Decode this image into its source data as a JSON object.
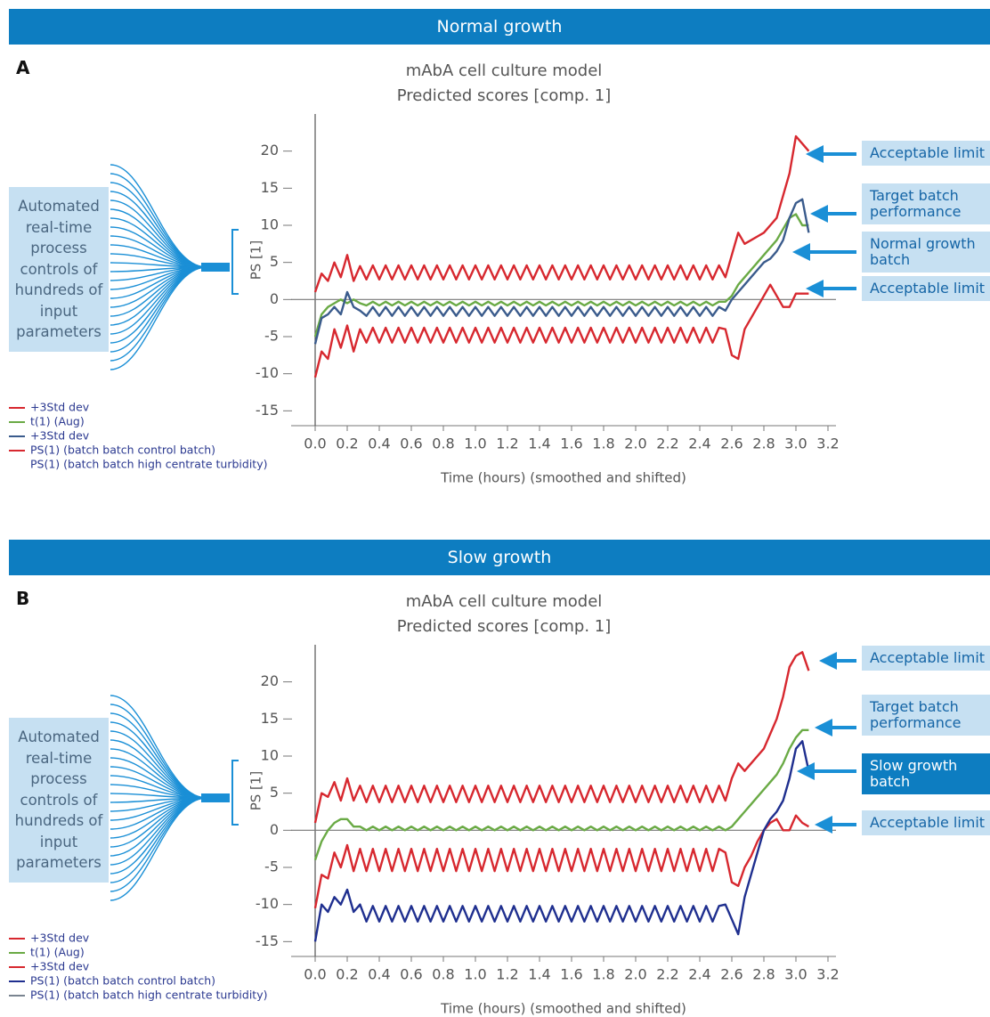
{
  "panels": [
    {
      "header": "Normal growth",
      "letter": "A",
      "process_label": "Automated real-time process controls of hundreds of input parameters",
      "annotations": [
        {
          "text": "Acceptable limit",
          "highlight": false
        },
        {
          "text": "Target batch performance",
          "highlight": false
        },
        {
          "text": "Normal growth batch",
          "highlight": false
        },
        {
          "text": "Acceptable limit",
          "highlight": false
        }
      ]
    },
    {
      "header": "Slow growth",
      "letter": "B",
      "process_label": "Automated real-time process controls of hundreds of input parameters",
      "annotations": [
        {
          "text": "Acceptable limit",
          "highlight": false
        },
        {
          "text": "Target batch performance",
          "highlight": false
        },
        {
          "text": "Slow growth batch",
          "highlight": true
        },
        {
          "text": "Acceptable limit",
          "highlight": false
        }
      ]
    }
  ],
  "chart_data": [
    {
      "type": "line",
      "title": "mAbA cell culture model",
      "subtitle": "Predicted scores [comp. 1]",
      "x_label": "Time (hours) (smoothed and shifted)",
      "y_label": "PS [1]",
      "xlim": [
        -0.15,
        3.25
      ],
      "ylim": [
        -17,
        25
      ],
      "xticks": [
        {
          "value": 0,
          "label": "0.0"
        },
        0.2,
        0.4,
        0.6,
        0.8,
        {
          "value": 1,
          "label": "1.0"
        },
        1.2,
        1.4,
        1.6,
        1.8,
        {
          "value": 2,
          "label": "2.0"
        },
        2.2,
        2.4,
        2.6,
        2.8,
        {
          "value": 3,
          "label": "3.0"
        },
        3.2
      ],
      "yticks": [
        -15,
        -10,
        -5,
        0,
        5,
        10,
        15,
        20
      ],
      "x": [
        0,
        0.04,
        0.08,
        0.12,
        0.16,
        0.2,
        0.24,
        0.28,
        0.32,
        0.36,
        0.4,
        0.44,
        0.48,
        0.52,
        0.56,
        0.6,
        0.64,
        0.68,
        0.72,
        0.76,
        0.8,
        0.84,
        0.88,
        0.92,
        0.96,
        1,
        1.04,
        1.08,
        1.12,
        1.16,
        1.2,
        1.24,
        1.28,
        1.32,
        1.36,
        1.4,
        1.44,
        1.48,
        1.52,
        1.56,
        1.6,
        1.64,
        1.68,
        1.72,
        1.76,
        1.8,
        1.84,
        1.88,
        1.92,
        1.96,
        2,
        2.04,
        2.08,
        2.12,
        2.16,
        2.2,
        2.24,
        2.28,
        2.32,
        2.36,
        2.4,
        2.44,
        2.48,
        2.52,
        2.56,
        2.6,
        2.64,
        2.68,
        2.72,
        2.76,
        2.8,
        2.84,
        2.88,
        2.92,
        2.96,
        3,
        3.04,
        3.08
      ],
      "series": [
        {
          "name": "+3Std dev",
          "color": "#d7282f",
          "values": [
            1,
            3.5,
            2.5,
            5,
            3,
            6,
            2.5,
            4.5,
            2.7,
            4.6,
            2.7,
            4.6,
            2.7,
            4.6,
            2.7,
            4.6,
            2.7,
            4.6,
            2.7,
            4.6,
            2.7,
            4.6,
            2.7,
            4.6,
            2.7,
            4.6,
            2.7,
            4.6,
            2.7,
            4.6,
            2.7,
            4.6,
            2.7,
            4.6,
            2.7,
            4.6,
            2.7,
            4.6,
            2.7,
            4.6,
            2.7,
            4.6,
            2.7,
            4.6,
            2.7,
            4.6,
            2.7,
            4.6,
            2.7,
            4.6,
            2.7,
            4.6,
            2.7,
            4.6,
            2.7,
            4.6,
            2.7,
            4.6,
            2.7,
            4.6,
            2.7,
            4.6,
            2.7,
            4.6,
            3,
            6,
            9,
            7.5,
            8,
            8.5,
            9,
            10,
            11,
            14,
            17,
            22,
            21,
            20
          ]
        },
        {
          "name": "t(1) (Aug)",
          "color": "#6aaa45",
          "values": [
            -5,
            -2,
            -1,
            -0.5,
            0,
            -0.5,
            0,
            -0.5,
            -0.8,
            -0.3,
            -0.8,
            -0.3,
            -0.8,
            -0.3,
            -0.8,
            -0.3,
            -0.8,
            -0.3,
            -0.8,
            -0.3,
            -0.8,
            -0.3,
            -0.8,
            -0.3,
            -0.8,
            -0.3,
            -0.8,
            -0.3,
            -0.8,
            -0.3,
            -0.8,
            -0.3,
            -0.8,
            -0.3,
            -0.8,
            -0.3,
            -0.8,
            -0.3,
            -0.8,
            -0.3,
            -0.8,
            -0.3,
            -0.8,
            -0.3,
            -0.8,
            -0.3,
            -0.8,
            -0.3,
            -0.8,
            -0.3,
            -0.8,
            -0.3,
            -0.8,
            -0.3,
            -0.8,
            -0.3,
            -0.8,
            -0.3,
            -0.8,
            -0.3,
            -0.8,
            -0.3,
            -0.8,
            -0.3,
            -0.3,
            0.5,
            2,
            3,
            4,
            5,
            6,
            7,
            8,
            9.5,
            11,
            11.5,
            10,
            10
          ]
        },
        {
          "name": "+3Std dev",
          "color": "#3a5b8c",
          "values": [
            -6,
            -2.5,
            -2,
            -1,
            -2,
            1,
            -1,
            -1.5,
            -2.2,
            -1,
            -2.2,
            -1,
            -2.2,
            -1,
            -2.2,
            -1,
            -2.2,
            -1,
            -2.2,
            -1,
            -2.2,
            -1,
            -2.2,
            -1,
            -2.2,
            -1,
            -2.2,
            -1,
            -2.2,
            -1,
            -2.2,
            -1,
            -2.2,
            -1,
            -2.2,
            -1,
            -2.2,
            -1,
            -2.2,
            -1,
            -2.2,
            -1,
            -2.2,
            -1,
            -2.2,
            -1,
            -2.2,
            -1,
            -2.2,
            -1,
            -2.2,
            -1,
            -2.2,
            -1,
            -2.2,
            -1,
            -2.2,
            -1,
            -2.2,
            -1,
            -2.2,
            -1,
            -2.2,
            -1,
            -1.5,
            0,
            1,
            2,
            3,
            4,
            5,
            5.5,
            6.5,
            8,
            11,
            13,
            13.5,
            9
          ]
        },
        {
          "name": "PS(1) (batch batch control batch)",
          "color": "#d7282f",
          "values": [
            -10.5,
            -7,
            -8,
            -4,
            -6.5,
            -3.5,
            -7,
            -4,
            -5.8,
            -3.8,
            -5.8,
            -3.8,
            -5.8,
            -3.8,
            -5.8,
            -3.8,
            -5.8,
            -3.8,
            -5.8,
            -3.8,
            -5.8,
            -3.8,
            -5.8,
            -3.8,
            -5.8,
            -3.8,
            -5.8,
            -3.8,
            -5.8,
            -3.8,
            -5.8,
            -3.8,
            -5.8,
            -3.8,
            -5.8,
            -3.8,
            -5.8,
            -3.8,
            -5.8,
            -3.8,
            -5.8,
            -3.8,
            -5.8,
            -3.8,
            -5.8,
            -3.8,
            -5.8,
            -3.8,
            -5.8,
            -3.8,
            -5.8,
            -3.8,
            -5.8,
            -3.8,
            -5.8,
            -3.8,
            -5.8,
            -3.8,
            -5.8,
            -3.8,
            -5.8,
            -3.8,
            -5.8,
            -3.8,
            -4,
            -7.5,
            -8,
            -4,
            -2.5,
            -1,
            0.5,
            2,
            0.5,
            -1,
            -1,
            0.8,
            0.8,
            0.8
          ]
        }
      ],
      "extra_legend": [
        {
          "name": "PS(1) (batch batch high centrate turbidity)",
          "color": null
        }
      ]
    },
    {
      "type": "line",
      "title": "mAbA cell culture model",
      "subtitle": "Predicted scores [comp. 1]",
      "x_label": "Time (hours) (smoothed and shifted)",
      "y_label": "PS [1]",
      "xlim": [
        -0.15,
        3.25
      ],
      "ylim": [
        -17,
        25
      ],
      "xticks": [
        {
          "value": 0,
          "label": "0.0"
        },
        0.2,
        0.4,
        0.6,
        0.8,
        {
          "value": 1,
          "label": "1.0"
        },
        1.2,
        1.4,
        1.6,
        1.8,
        {
          "value": 2,
          "label": "2.0"
        },
        2.2,
        2.4,
        2.6,
        2.8,
        {
          "value": 3,
          "label": "3.0"
        },
        3.2
      ],
      "yticks": [
        -15,
        -10,
        -5,
        0,
        5,
        10,
        15,
        20
      ],
      "x": [
        0,
        0.04,
        0.08,
        0.12,
        0.16,
        0.2,
        0.24,
        0.28,
        0.32,
        0.36,
        0.4,
        0.44,
        0.48,
        0.52,
        0.56,
        0.6,
        0.64,
        0.68,
        0.72,
        0.76,
        0.8,
        0.84,
        0.88,
        0.92,
        0.96,
        1,
        1.04,
        1.08,
        1.12,
        1.16,
        1.2,
        1.24,
        1.28,
        1.32,
        1.36,
        1.4,
        1.44,
        1.48,
        1.52,
        1.56,
        1.6,
        1.64,
        1.68,
        1.72,
        1.76,
        1.8,
        1.84,
        1.88,
        1.92,
        1.96,
        2,
        2.04,
        2.08,
        2.12,
        2.16,
        2.2,
        2.24,
        2.28,
        2.32,
        2.36,
        2.4,
        2.44,
        2.48,
        2.52,
        2.56,
        2.6,
        2.64,
        2.68,
        2.72,
        2.76,
        2.8,
        2.84,
        2.88,
        2.92,
        2.96,
        3,
        3.04,
        3.08
      ],
      "series": [
        {
          "name": "+3Std dev",
          "color": "#d7282f",
          "values": [
            1,
            5,
            4.5,
            6.5,
            4,
            7,
            4,
            6,
            3.8,
            6,
            3.8,
            6,
            3.8,
            6,
            3.8,
            6,
            3.8,
            6,
            3.8,
            6,
            3.8,
            6,
            3.8,
            6,
            3.8,
            6,
            3.8,
            6,
            3.8,
            6,
            3.8,
            6,
            3.8,
            6,
            3.8,
            6,
            3.8,
            6,
            3.8,
            6,
            3.8,
            6,
            3.8,
            6,
            3.8,
            6,
            3.8,
            6,
            3.8,
            6,
            3.8,
            6,
            3.8,
            6,
            3.8,
            6,
            3.8,
            6,
            3.8,
            6,
            3.8,
            6,
            3.8,
            6,
            4,
            7,
            9,
            8,
            9,
            10,
            11,
            13,
            15,
            18,
            22,
            23.5,
            24,
            21.5
          ]
        },
        {
          "name": "t(1) (Aug)",
          "color": "#6aaa45",
          "values": [
            -4,
            -1.5,
            0,
            1,
            1.5,
            1.5,
            0.5,
            0.5,
            0,
            0.5,
            0,
            0.5,
            0,
            0.5,
            0,
            0.5,
            0,
            0.5,
            0,
            0.5,
            0,
            0.5,
            0,
            0.5,
            0,
            0.5,
            0,
            0.5,
            0,
            0.5,
            0,
            0.5,
            0,
            0.5,
            0,
            0.5,
            0,
            0.5,
            0,
            0.5,
            0,
            0.5,
            0,
            0.5,
            0,
            0.5,
            0,
            0.5,
            0,
            0.5,
            0,
            0.5,
            0,
            0.5,
            0,
            0.5,
            0,
            0.5,
            0,
            0.5,
            0,
            0.5,
            0,
            0.5,
            0,
            0.5,
            1.5,
            2.5,
            3.5,
            4.5,
            5.5,
            6.5,
            7.5,
            9,
            11,
            12.5,
            13.5,
            13.5
          ]
        },
        {
          "name": "+3Std dev",
          "color": "#d7282f",
          "values": [
            -10.5,
            -6,
            -6.5,
            -3,
            -5,
            -2,
            -5.5,
            -2.5,
            -5.5,
            -2.5,
            -5.5,
            -2.5,
            -5.5,
            -2.5,
            -5.5,
            -2.5,
            -5.5,
            -2.5,
            -5.5,
            -2.5,
            -5.5,
            -2.5,
            -5.5,
            -2.5,
            -5.5,
            -2.5,
            -5.5,
            -2.5,
            -5.5,
            -2.5,
            -5.5,
            -2.5,
            -5.5,
            -2.5,
            -5.5,
            -2.5,
            -5.5,
            -2.5,
            -5.5,
            -2.5,
            -5.5,
            -2.5,
            -5.5,
            -2.5,
            -5.5,
            -2.5,
            -5.5,
            -2.5,
            -5.5,
            -2.5,
            -5.5,
            -2.5,
            -5.5,
            -2.5,
            -5.5,
            -2.5,
            -5.5,
            -2.5,
            -5.5,
            -2.5,
            -5.5,
            -2.5,
            -5.5,
            -2.5,
            -3,
            -7,
            -7.5,
            -5,
            -3.5,
            -1.5,
            0,
            1,
            1.5,
            0,
            0,
            2,
            1,
            0.5
          ]
        },
        {
          "name": "PS(1) (batch batch control batch)",
          "color": "#1f2f8f",
          "values": [
            -15,
            -10,
            -11,
            -9,
            -10,
            -8,
            -11,
            -10,
            -12.3,
            -10.2,
            -12.3,
            -10.2,
            -12.3,
            -10.2,
            -12.3,
            -10.2,
            -12.3,
            -10.2,
            -12.3,
            -10.2,
            -12.3,
            -10.2,
            -12.3,
            -10.2,
            -12.3,
            -10.2,
            -12.3,
            -10.2,
            -12.3,
            -10.2,
            -12.3,
            -10.2,
            -12.3,
            -10.2,
            -12.3,
            -10.2,
            -12.3,
            -10.2,
            -12.3,
            -10.2,
            -12.3,
            -10.2,
            -12.3,
            -10.2,
            -12.3,
            -10.2,
            -12.3,
            -10.2,
            -12.3,
            -10.2,
            -12.3,
            -10.2,
            -12.3,
            -10.2,
            -12.3,
            -10.2,
            -12.3,
            -10.2,
            -12.3,
            -10.2,
            -12.3,
            -10.2,
            -12.3,
            -10.2,
            -10,
            -12,
            -14,
            -9,
            -6,
            -3,
            0,
            1.5,
            2.5,
            4,
            7,
            11,
            12,
            8
          ]
        }
      ],
      "extra_legend": [
        {
          "name": "PS(1) (batch batch high centrate turbidity)",
          "color": "#7a8490"
        }
      ]
    }
  ]
}
